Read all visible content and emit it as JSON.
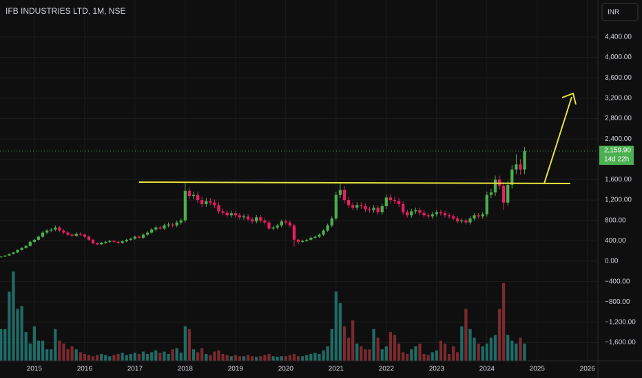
{
  "chart_data": {
    "type": "candlestick",
    "title": "IFB INDUSTRIES LTD, 1M, NSE",
    "currency": "INR",
    "last_price_label": "2,159.90",
    "countdown": "14d 22h",
    "up_color": "#4caf50",
    "down_color": "#e91e63",
    "volume_up_color": "#1f6b66",
    "volume_down_color": "#7a2a2e",
    "xlim": [
      -0.2,
      142.5
    ],
    "ylim": [
      -1957,
      5128
    ],
    "xticks": [
      {
        "value": 8,
        "label": "2015"
      },
      {
        "value": 20,
        "label": "2016"
      },
      {
        "value": 32,
        "label": "2017"
      },
      {
        "value": 44,
        "label": "2018"
      },
      {
        "value": 56,
        "label": "2019"
      },
      {
        "value": 68,
        "label": "2020"
      },
      {
        "value": 80,
        "label": "2021"
      },
      {
        "value": 92,
        "label": "2022"
      },
      {
        "value": 104,
        "label": "2023"
      },
      {
        "value": 116,
        "label": "2024"
      },
      {
        "value": 128,
        "label": "2025"
      },
      {
        "value": 140,
        "label": "2026"
      }
    ],
    "yticks": [
      {
        "value": -1600,
        "label": "−1,600.00"
      },
      {
        "value": -1200,
        "label": "−1,200.00"
      },
      {
        "value": -800,
        "label": "−800.00"
      },
      {
        "value": -400,
        "label": "−400.00"
      },
      {
        "value": 0,
        "label": "0.00"
      },
      {
        "value": 400,
        "label": "400.00"
      },
      {
        "value": 800,
        "label": "800.00"
      },
      {
        "value": 1200,
        "label": "1,200.00"
      },
      {
        "value": 1600,
        "label": "1,600.00"
      },
      {
        "value": 2000,
        "label": "2,000.00"
      },
      {
        "value": 2400,
        "label": "2,400.00"
      },
      {
        "value": 2800,
        "label": "2,800.00"
      },
      {
        "value": 3200,
        "label": "3,200.00"
      },
      {
        "value": 3600,
        "label": "3,600.00"
      },
      {
        "value": 4000,
        "label": "4,000.00"
      },
      {
        "value": 4400,
        "label": "4,400.00"
      }
    ],
    "candles": [
      [
        80,
        95,
        75,
        90
      ],
      [
        90,
        115,
        85,
        110
      ],
      [
        110,
        148,
        105,
        140
      ],
      [
        140,
        180,
        132,
        170
      ],
      [
        170,
        230,
        160,
        220
      ],
      [
        220,
        272,
        210,
        260
      ],
      [
        260,
        315,
        248,
        300
      ],
      [
        300,
        400,
        285,
        380
      ],
      [
        380,
        440,
        360,
        420
      ],
      [
        420,
        505,
        400,
        480
      ],
      [
        480,
        590,
        455,
        560
      ],
      [
        560,
        630,
        530,
        600
      ],
      [
        600,
        650,
        570,
        620
      ],
      [
        620,
        700,
        590,
        660
      ],
      [
        660,
        690,
        570,
        600
      ],
      [
        600,
        630,
        530,
        560
      ],
      [
        560,
        590,
        495,
        520
      ],
      [
        520,
        545,
        475,
        500
      ],
      [
        500,
        565,
        475,
        540
      ],
      [
        540,
        565,
        495,
        520
      ],
      [
        520,
        545,
        455,
        480
      ],
      [
        480,
        505,
        400,
        420
      ],
      [
        420,
        440,
        330,
        350
      ],
      [
        350,
        370,
        310,
        330
      ],
      [
        330,
        380,
        315,
        360
      ],
      [
        360,
        400,
        340,
        380
      ],
      [
        380,
        420,
        360,
        400
      ],
      [
        400,
        420,
        360,
        380
      ],
      [
        380,
        400,
        340,
        360
      ],
      [
        360,
        410,
        340,
        390
      ],
      [
        390,
        440,
        370,
        420
      ],
      [
        420,
        460,
        400,
        440
      ],
      [
        440,
        505,
        420,
        480
      ],
      [
        480,
        505,
        440,
        460
      ],
      [
        460,
        545,
        440,
        520
      ],
      [
        520,
        590,
        495,
        560
      ],
      [
        560,
        650,
        530,
        620
      ],
      [
        620,
        695,
        590,
        660
      ],
      [
        660,
        690,
        610,
        640
      ],
      [
        640,
        735,
        610,
        700
      ],
      [
        700,
        760,
        665,
        720
      ],
      [
        720,
        755,
        665,
        700
      ],
      [
        700,
        800,
        665,
        760
      ],
      [
        760,
        840,
        720,
        800
      ],
      [
        800,
        1530,
        760,
        1380
      ],
      [
        1380,
        1450,
        1220,
        1280
      ],
      [
        1280,
        1365,
        1220,
        1300
      ],
      [
        1300,
        1365,
        1140,
        1200
      ],
      [
        1200,
        1260,
        1065,
        1120
      ],
      [
        1120,
        1240,
        1065,
        1180
      ],
      [
        1180,
        1240,
        1095,
        1150
      ],
      [
        1150,
        1210,
        1045,
        1100
      ],
      [
        1100,
        1155,
        930,
        980
      ],
      [
        980,
        1030,
        900,
        950
      ],
      [
        950,
        1000,
        855,
        900
      ],
      [
        900,
        990,
        855,
        940
      ],
      [
        940,
        990,
        855,
        900
      ],
      [
        900,
        945,
        815,
        860
      ],
      [
        860,
        925,
        815,
        880
      ],
      [
        880,
        925,
        780,
        820
      ],
      [
        820,
        860,
        740,
        780
      ],
      [
        780,
        905,
        740,
        860
      ],
      [
        860,
        905,
        760,
        800
      ],
      [
        800,
        840,
        720,
        760
      ],
      [
        760,
        800,
        610,
        640
      ],
      [
        640,
        695,
        610,
        660
      ],
      [
        660,
        735,
        625,
        700
      ],
      [
        700,
        820,
        665,
        780
      ],
      [
        780,
        820,
        720,
        760
      ],
      [
        760,
        800,
        665,
        700
      ],
      [
        700,
        735,
        290,
        420
      ],
      [
        420,
        440,
        330,
        380
      ],
      [
        380,
        420,
        360,
        400
      ],
      [
        400,
        440,
        380,
        420
      ],
      [
        420,
        485,
        400,
        460
      ],
      [
        460,
        505,
        440,
        480
      ],
      [
        480,
        545,
        455,
        520
      ],
      [
        520,
        630,
        495,
        600
      ],
      [
        600,
        735,
        570,
        700
      ],
      [
        700,
        880,
        665,
        840
      ],
      [
        840,
        1365,
        800,
        1300
      ],
      [
        1300,
        1520,
        1235,
        1400
      ],
      [
        1400,
        1470,
        1140,
        1200
      ],
      [
        1200,
        1260,
        1045,
        1100
      ],
      [
        1100,
        1155,
        1000,
        1050
      ],
      [
        1050,
        1155,
        1000,
        1100
      ],
      [
        1100,
        1155,
        1025,
        1080
      ],
      [
        1080,
        1135,
        970,
        1020
      ],
      [
        1020,
        1070,
        950,
        1000
      ],
      [
        1000,
        1100,
        950,
        1050
      ],
      [
        1050,
        1100,
        910,
        960
      ],
      [
        960,
        1135,
        910,
        1080
      ],
      [
        1080,
        1310,
        1025,
        1250
      ],
      [
        1250,
        1310,
        1140,
        1200
      ],
      [
        1200,
        1260,
        1120,
        1180
      ],
      [
        1180,
        1240,
        1065,
        1120
      ],
      [
        1120,
        1175,
        910,
        960
      ],
      [
        960,
        1010,
        855,
        900
      ],
      [
        900,
        1030,
        855,
        980
      ],
      [
        980,
        1050,
        930,
        1000
      ],
      [
        1000,
        1050,
        900,
        950
      ],
      [
        950,
        1000,
        855,
        900
      ],
      [
        900,
        945,
        835,
        880
      ],
      [
        880,
        965,
        835,
        920
      ],
      [
        920,
        1010,
        875,
        960
      ],
      [
        960,
        1010,
        895,
        940
      ],
      [
        940,
        990,
        855,
        900
      ],
      [
        900,
        945,
        835,
        880
      ],
      [
        880,
        925,
        800,
        840
      ],
      [
        840,
        880,
        740,
        780
      ],
      [
        780,
        840,
        740,
        800
      ],
      [
        800,
        840,
        720,
        760
      ],
      [
        760,
        880,
        720,
        840
      ],
      [
        840,
        945,
        800,
        900
      ],
      [
        900,
        945,
        835,
        880
      ],
      [
        880,
        965,
        835,
        920
      ],
      [
        920,
        1365,
        875,
        1300
      ],
      [
        1300,
        1420,
        1235,
        1350
      ],
      [
        1350,
        1680,
        1280,
        1600
      ],
      [
        1600,
        1680,
        1410,
        1480
      ],
      [
        1480,
        1550,
        1000,
        1150
      ],
      [
        1150,
        1575,
        1090,
        1500
      ],
      [
        1500,
        1890,
        1425,
        1800
      ],
      [
        1800,
        2100,
        1710,
        1900
      ],
      [
        1900,
        2000,
        1700,
        1800
      ],
      [
        1800,
        2240,
        1710,
        2159.9
      ]
    ],
    "volume": [
      55,
      55,
      120,
      155,
      90,
      95,
      50,
      30,
      60,
      35,
      35,
      20,
      20,
      55,
      35,
      30,
      20,
      25,
      20,
      15,
      12,
      10,
      8,
      10,
      12,
      10,
      8,
      10,
      12,
      14,
      10,
      12,
      14,
      12,
      16,
      12,
      15,
      18,
      14,
      16,
      12,
      20,
      22,
      14,
      60,
      55,
      20,
      15,
      22,
      12,
      10,
      16,
      18,
      12,
      10,
      8,
      10,
      8,
      8,
      10,
      8,
      7,
      8,
      10,
      12,
      8,
      7,
      8,
      8,
      10,
      12,
      8,
      8,
      10,
      12,
      14,
      12,
      18,
      25,
      55,
      120,
      100,
      60,
      40,
      70,
      30,
      25,
      20,
      20,
      55,
      40,
      20,
      25,
      50,
      45,
      30,
      15,
      12,
      20,
      25,
      30,
      12,
      10,
      15,
      18,
      35,
      30,
      12,
      25,
      15,
      60,
      90,
      55,
      40,
      30,
      25,
      30,
      40,
      45,
      90,
      135,
      45,
      35,
      30,
      40,
      30
    ]
  }
}
